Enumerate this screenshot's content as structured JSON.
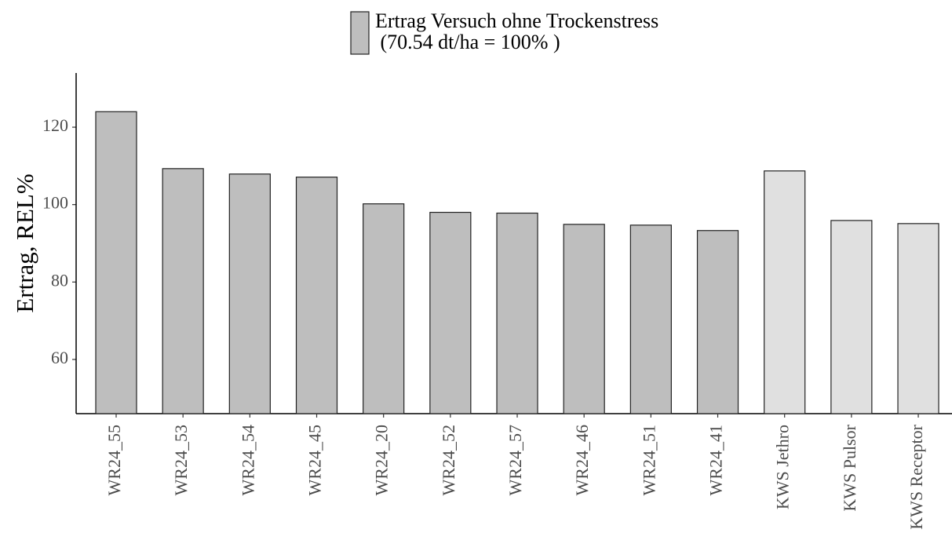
{
  "chart_data": {
    "type": "bar",
    "y_axis_label": "Ertrag, REL%",
    "categories": [
      "WR24_55",
      "WR24_53",
      "WR24_54",
      "WR24_45",
      "WR24_20",
      "WR24_52",
      "WR24_57",
      "WR24_46",
      "WR24_51",
      "WR24_41",
      "KWS Jethro",
      "KWS Pulsor",
      "KWS Receptor"
    ],
    "series": [
      {
        "name": "Ertrag Versuch ohne Trockenstress\n (70.54 dt/ha = 100% )",
        "color": "#bebebe",
        "values": [
          124,
          109.3,
          107.9,
          107.1,
          100.2,
          98,
          97.8,
          94.9,
          94.7,
          93.3,
          108.7,
          95.9,
          95.1
        ],
        "colors": [
          "#bebebe",
          "#bebebe",
          "#bebebe",
          "#bebebe",
          "#bebebe",
          "#bebebe",
          "#bebebe",
          "#bebebe",
          "#bebebe",
          "#bebebe",
          "#e0e0e0",
          "#e0e0e0",
          "#e0e0e0"
        ]
      }
    ],
    "ylim": [
      46,
      134
    ],
    "yticks": [
      60,
      80,
      100,
      120
    ],
    "grid": false
  }
}
